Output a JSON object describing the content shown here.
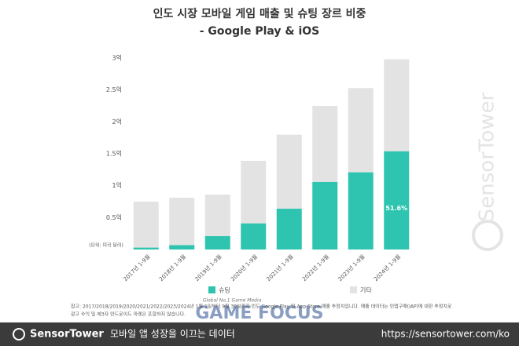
{
  "chart_data": {
    "type": "stacked_bar",
    "title": "인도 시장 모바일 게임 매출 및 슈팅 장르 비중",
    "subtitle": "- Google Play & iOS",
    "unit_label": "(단위: 미국 달러)",
    "categories": [
      "2017년 1-9월",
      "2018년 1-9월",
      "2019년 1-9월",
      "2020년 1-9월",
      "2021년 1-9월",
      "2022년 1-9월",
      "2023년 1-9월",
      "2024년 1-9월"
    ],
    "series": [
      {
        "name": "슈팅",
        "color": "#2ec4b0",
        "values": [
          0.03,
          0.07,
          0.21,
          0.41,
          0.64,
          1.06,
          1.21,
          1.54
        ]
      },
      {
        "name": "기타",
        "color": "#e3e3e3",
        "values": [
          0.72,
          0.74,
          0.65,
          0.98,
          1.16,
          1.19,
          1.32,
          1.44
        ]
      }
    ],
    "annotations": [
      {
        "text": "51.6%",
        "series": 0,
        "index": 7
      }
    ],
    "ylim": [
      0,
      3
    ],
    "yticks": [
      {
        "value": 0.5,
        "label": "0.5억"
      },
      {
        "value": 1,
        "label": "1억"
      },
      {
        "value": 1.5,
        "label": "1.5억"
      },
      {
        "value": 2,
        "label": "2억"
      },
      {
        "value": 2.5,
        "label": "2.5억"
      },
      {
        "value": 3,
        "label": "3억"
      }
    ],
    "grid": false,
    "legend": "bottom",
    "footnote": [
      "참고: 2017/2018/2019/2020/2021/2022/2023/2024년 1월 1일부터 9월 30일까지 인도 Google Play 및 App Store 매출 추정치입니다. 매출 데이터는 인앱구매(IAP)에 대한 추정치로",
      "광고 수익 및 제3자 안드로이드 마켓은 포함하지 않습니다."
    ],
    "watermark": "SensorTower",
    "media_tag": "Global No.1 Game Media",
    "media_name": "GAME FOCUS",
    "footer": {
      "brand": "SensorTower",
      "tagline": "모바일 앱 성장을 이끄는 데이터",
      "url": "https://sensortower.com/ko"
    }
  }
}
